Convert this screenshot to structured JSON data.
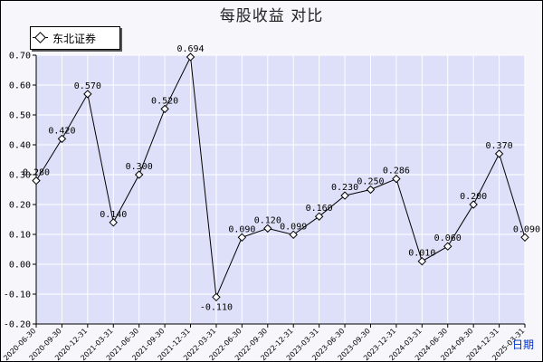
{
  "chart_data": {
    "type": "line",
    "title": "每股收益  对比",
    "xlabel": "日期",
    "ylabel": "",
    "ylim": [
      -0.2,
      0.7
    ],
    "y_ticks": [
      "-0.20",
      "-0.10",
      "0.00",
      "0.10",
      "0.20",
      "0.30",
      "0.40",
      "0.50",
      "0.60",
      "0.70"
    ],
    "legend_position": "top-left",
    "grid": true,
    "categories": [
      "2020-06-30",
      "2020-09-30",
      "2020-12-31",
      "2021-03-31",
      "2021-06-30",
      "2021-09-30",
      "2021-12-31",
      "2022-03-31",
      "2022-06-30",
      "2022-09-30",
      "2022-12-31",
      "2023-03-31",
      "2023-06-30",
      "2023-09-30",
      "2023-12-31",
      "2024-03-31",
      "2024-06-30",
      "2024-09-30",
      "2024-12-31",
      "2025-03-31"
    ],
    "x_tick_labels": [
      "2020-06-30",
      "2020-09-30",
      "2020-12-31",
      "2021-03-31",
      "2021-06-30",
      "2021-09-30",
      "2021-12-31",
      "2022-03-31",
      "2022-06-30",
      "2022-09-30",
      "2022-12-31",
      "2023-03-31",
      "2023-06-30",
      "2023-09-30",
      "2023-12-31",
      "2024-03-31",
      "2024-06-30",
      "2024-09-30",
      "2024-12-31",
      "2025-03-31"
    ],
    "series": [
      {
        "name": "东北证券",
        "values": [
          0.28,
          0.42,
          0.57,
          0.14,
          0.3,
          0.52,
          0.694,
          -0.11,
          0.09,
          0.12,
          0.099,
          0.16,
          0.23,
          0.25,
          0.286,
          0.01,
          0.06,
          0.2,
          0.37,
          0.09
        ],
        "labels": [
          "0.280",
          "0.420",
          "0.570",
          "0.140",
          "0.300",
          "0.520",
          "0.694",
          "-0.110",
          "0.090",
          "0.120",
          "0.099",
          "0.160",
          "0.230",
          "0.250",
          "0.286",
          "0.010",
          "0.060",
          "0.200",
          "0.370",
          "0.090"
        ],
        "color": "#000000"
      }
    ],
    "colors": {
      "plot_background": "#dde0f8",
      "grid": "#ffffff",
      "page_background": "#f6f6fb",
      "axis_label": "#0033cc"
    }
  }
}
